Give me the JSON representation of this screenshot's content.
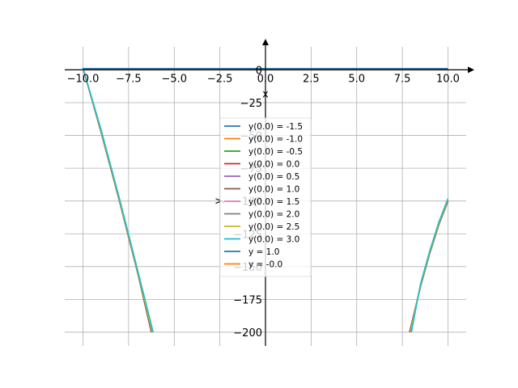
{
  "chart_data": {
    "type": "line",
    "xlabel": "x",
    "ylabel": "y",
    "xlim": [
      -11.0,
      11.0
    ],
    "ylim": [
      -210.5,
      17.5
    ],
    "grid": true,
    "legend_position": "center",
    "x_ticks": [
      -10.0,
      -7.5,
      -5.0,
      -2.5,
      0.0,
      2.5,
      5.0,
      7.5,
      10.0
    ],
    "x_tick_labels": [
      "−10.0",
      "−7.5",
      "−5.0",
      "−2.5",
      "0.0",
      "2.5",
      "5.0",
      "7.5",
      "10.0"
    ],
    "y_ticks": [
      0,
      -25,
      -50,
      -75,
      -100,
      -125,
      -150,
      -175,
      -200
    ],
    "y_tick_labels": [
      "0",
      "−25",
      "−50",
      "−75",
      "−100",
      "−125",
      "−150",
      "−175",
      "−200"
    ],
    "series": [
      {
        "name": "y(0.0) = -1.5",
        "color": "#1f77b4",
        "left": [
          [
            -10.0,
            1.5
          ],
          [
            -9.0,
            -48.0
          ],
          [
            -8.0,
            -100.0
          ],
          [
            -7.0,
            -155.0
          ],
          [
            -6.25,
            -200.0
          ]
        ],
        "right": [
          [
            7.9,
            -200.0
          ],
          [
            8.5,
            -165.0
          ],
          [
            9.0,
            -140.0
          ],
          [
            9.5,
            -118.0
          ],
          [
            10.0,
            -100.0
          ]
        ]
      },
      {
        "name": "y(0.0) = -1.0",
        "color": "#ff7f0e",
        "left": [
          [
            -10.0,
            1.5
          ],
          [
            -9.0,
            -48.0
          ],
          [
            -8.0,
            -100.0
          ],
          [
            -7.0,
            -155.0
          ],
          [
            -6.25,
            -200.0
          ]
        ],
        "right": [
          [
            7.9,
            -200.0
          ],
          [
            8.5,
            -165.0
          ],
          [
            9.0,
            -140.0
          ],
          [
            9.5,
            -118.0
          ],
          [
            10.0,
            -100.0
          ]
        ]
      },
      {
        "name": "y(0.0) = -0.5",
        "color": "#2ca02c",
        "left": [
          [
            -10.0,
            1.5
          ],
          [
            -9.0,
            -48.0
          ],
          [
            -8.0,
            -100.0
          ],
          [
            -7.0,
            -155.0
          ],
          [
            -6.25,
            -200.0
          ]
        ],
        "right": [
          [
            7.9,
            -200.0
          ],
          [
            8.5,
            -165.0
          ],
          [
            9.0,
            -140.0
          ],
          [
            9.5,
            -118.0
          ],
          [
            10.0,
            -100.0
          ]
        ]
      },
      {
        "name": "y(0.0) = 0.0",
        "color": "#d62728",
        "left": [
          [
            -10.0,
            1.5
          ],
          [
            -9.0,
            -48.0
          ],
          [
            -8.0,
            -100.0
          ],
          [
            -7.0,
            -155.0
          ],
          [
            -6.25,
            -200.0
          ]
        ],
        "right": [
          [
            7.9,
            -200.0
          ],
          [
            8.5,
            -165.0
          ],
          [
            9.0,
            -140.0
          ],
          [
            9.5,
            -118.0
          ],
          [
            10.0,
            -100.0
          ]
        ]
      },
      {
        "name": "y(0.0) = 0.5",
        "color": "#9467bd",
        "left": [
          [
            -10.0,
            1.5
          ],
          [
            -9.0,
            -48.0
          ],
          [
            -8.0,
            -100.0
          ],
          [
            -7.0,
            -155.0
          ],
          [
            -6.25,
            -200.0
          ]
        ],
        "right": [
          [
            7.9,
            -200.0
          ],
          [
            8.5,
            -165.0
          ],
          [
            9.0,
            -140.0
          ],
          [
            9.5,
            -118.0
          ],
          [
            10.0,
            -100.0
          ]
        ]
      },
      {
        "name": "y(0.0) = 1.0",
        "color": "#8c564b",
        "left": [
          [
            -10.0,
            1.5
          ],
          [
            -9.0,
            -48.0
          ],
          [
            -8.0,
            -100.0
          ],
          [
            -7.0,
            -155.0
          ],
          [
            -6.25,
            -200.0
          ]
        ],
        "right": [
          [
            7.9,
            -200.0
          ],
          [
            8.5,
            -165.0
          ],
          [
            9.0,
            -140.0
          ],
          [
            9.5,
            -118.0
          ],
          [
            10.0,
            -100.0
          ]
        ]
      },
      {
        "name": "y(0.0) = 1.5",
        "color": "#e377c2",
        "left": [
          [
            -10.0,
            1.5
          ],
          [
            -9.0,
            -47.0
          ],
          [
            -8.0,
            -99.0
          ],
          [
            -7.0,
            -154.0
          ],
          [
            -6.2,
            -200.0
          ]
        ],
        "right": [
          [
            7.95,
            -200.0
          ],
          [
            8.5,
            -164.0
          ],
          [
            9.0,
            -139.0
          ],
          [
            9.5,
            -117.0
          ],
          [
            10.0,
            -99.0
          ]
        ]
      },
      {
        "name": "y(0.0) = 2.0",
        "color": "#7f7f7f",
        "left": [
          [
            -10.0,
            1.5
          ],
          [
            -9.0,
            -47.0
          ],
          [
            -8.0,
            -99.0
          ],
          [
            -7.0,
            -154.0
          ],
          [
            -6.2,
            -200.0
          ]
        ],
        "right": [
          [
            7.95,
            -200.0
          ],
          [
            8.5,
            -164.0
          ],
          [
            9.0,
            -139.0
          ],
          [
            9.5,
            -117.0
          ],
          [
            10.0,
            -99.0
          ]
        ]
      },
      {
        "name": "y(0.0) = 2.5",
        "color": "#bcbd22",
        "left": [
          [
            -10.0,
            1.5
          ],
          [
            -9.0,
            -47.0
          ],
          [
            -8.0,
            -99.0
          ],
          [
            -7.0,
            -154.0
          ],
          [
            -6.2,
            -200.0
          ]
        ],
        "right": [
          [
            7.95,
            -200.0
          ],
          [
            8.5,
            -164.0
          ],
          [
            9.0,
            -139.0
          ],
          [
            9.5,
            -117.0
          ],
          [
            10.0,
            -99.0
          ]
        ]
      },
      {
        "name": "y(0.0) = 3.0",
        "color": "#17becf",
        "left": [
          [
            -10.0,
            1.5
          ],
          [
            -9.0,
            -46.0
          ],
          [
            -8.0,
            -98.0
          ],
          [
            -7.0,
            -153.0
          ],
          [
            -6.15,
            -200.0
          ]
        ],
        "right": [
          [
            8.0,
            -200.0
          ],
          [
            8.5,
            -163.0
          ],
          [
            9.0,
            -138.0
          ],
          [
            9.5,
            -116.0
          ],
          [
            10.0,
            -98.0
          ]
        ]
      }
    ],
    "reference_lines": [
      {
        "name": "y = 1.0",
        "color": "#1f77b4",
        "y": 1.0,
        "x_range": [
          -10.0,
          10.0
        ]
      },
      {
        "name": "y = -0.0",
        "color": "#ff7f0e",
        "y": 0.0,
        "x_range": [
          -10.0,
          10.0
        ]
      }
    ]
  }
}
